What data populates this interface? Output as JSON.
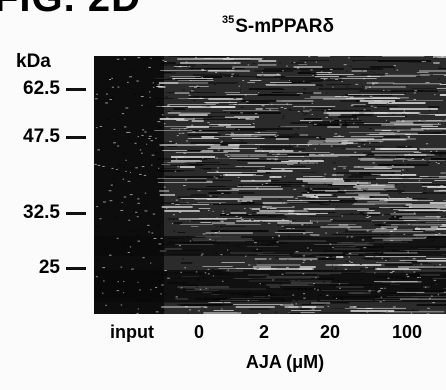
{
  "figure": {
    "label": "FIG. 2D",
    "title_superscript": "35",
    "title_main": "S-mPPARδ",
    "kda_label": "kDa",
    "markers": [
      "62.5",
      "47.5",
      "32.5",
      "25"
    ],
    "lanes": [
      "input",
      "0",
      "2",
      "20",
      "100"
    ],
    "x_title": "AJA (μM)"
  }
}
